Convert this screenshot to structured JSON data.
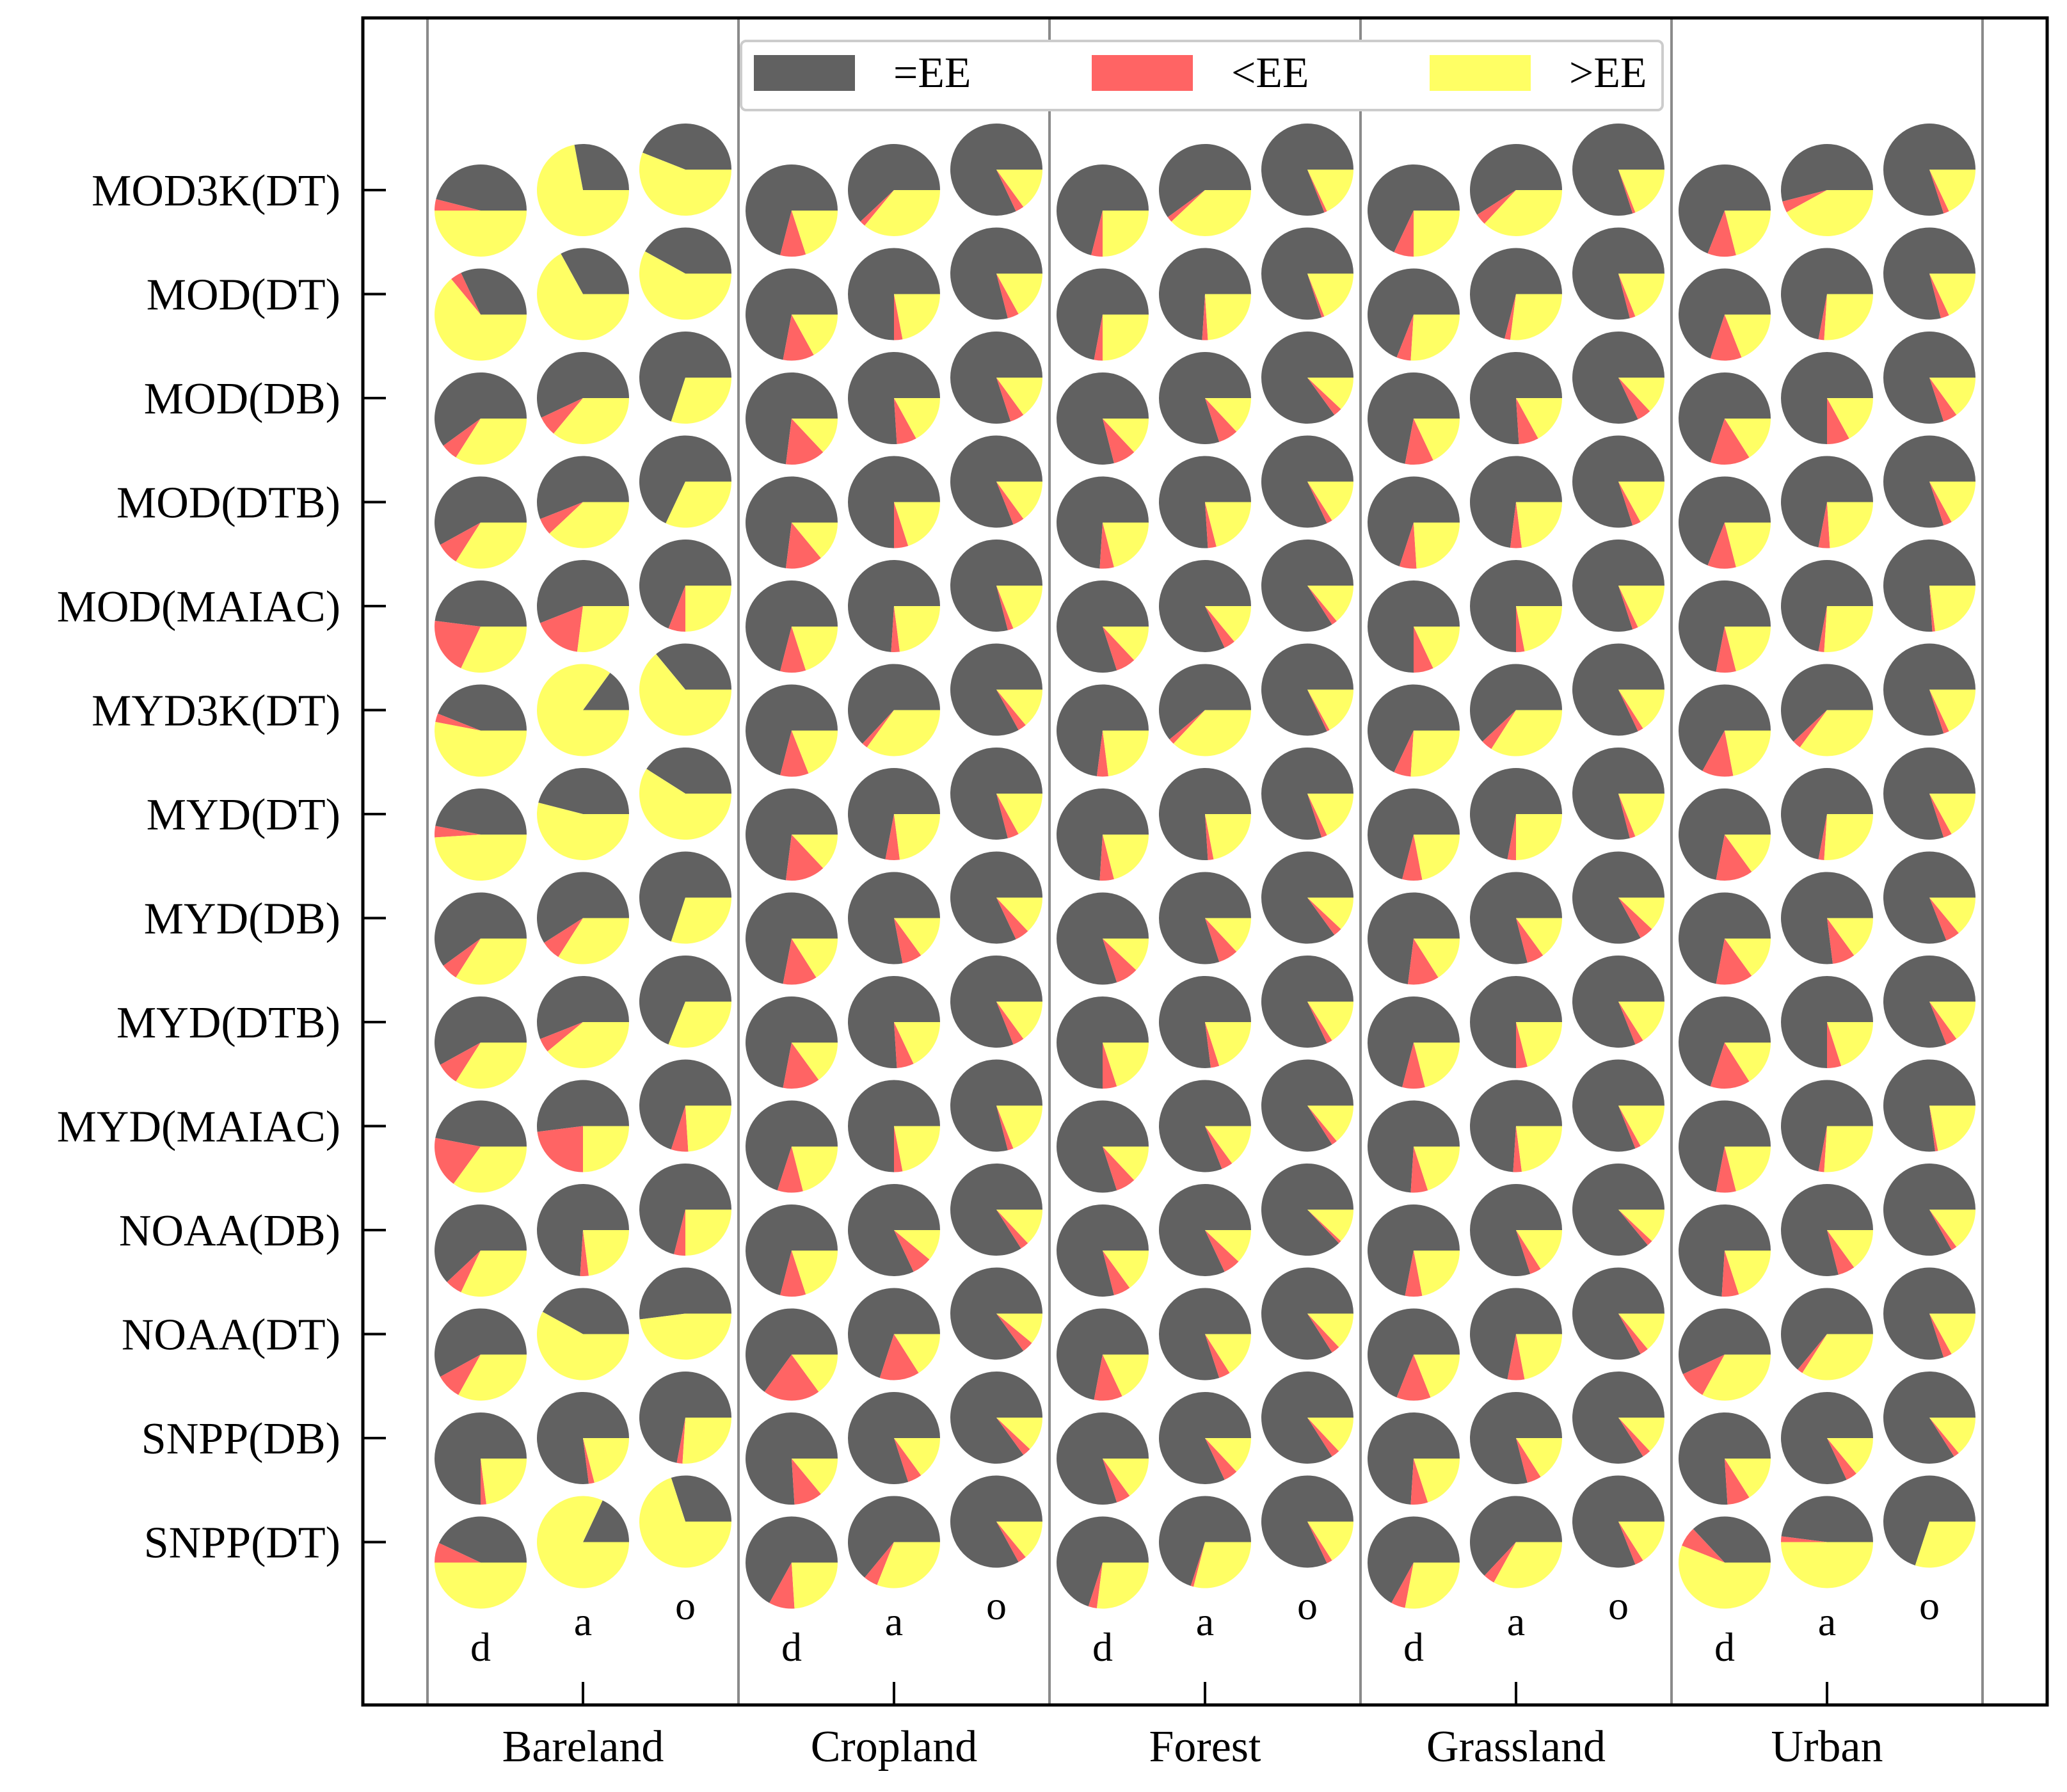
{
  "chart_data": {
    "type": "pie-grid",
    "title": "",
    "colors": {
      "eq": "#616161",
      "lt": "#ff6464",
      "gt": "#ffff64"
    },
    "legend": [
      {
        "key": "eq",
        "label": "=EE"
      },
      {
        "key": "lt",
        "label": "<EE"
      },
      {
        "key": "gt",
        "label": ">EE"
      }
    ],
    "legend_position": "top-center",
    "products": [
      "MOD3K(DT)",
      "MOD(DT)",
      "MOD(DB)",
      "MOD(DTB)",
      "MOD(MAIAC)",
      "MYD3K(DT)",
      "MYD(DT)",
      "MYD(DB)",
      "MYD(DTB)",
      "MYD(MAIAC)",
      "NOAA(DB)",
      "NOAA(DT)",
      "SNPP(DB)",
      "SNPP(DT)"
    ],
    "land_covers": [
      "Bareland",
      "Cropland",
      "Forest",
      "Grassland",
      "Urban"
    ],
    "conditions": [
      "d",
      "a",
      "o"
    ],
    "condition_note": "Each land cover has three pies per product: d, a, o (left to right, vertically staggered). Each pie = [=EE %, <EE %, >EE %].",
    "values": {
      "Bareland": {
        "MOD3K(DT)": [
          [
            46,
            4,
            50
          ],
          [
            28,
            0,
            72
          ],
          [
            44,
            0,
            56
          ]
        ],
        "MOD(DT)": [
          [
            32,
            4,
            64
          ],
          [
            33,
            0,
            67
          ],
          [
            42,
            0,
            58
          ]
        ],
        "MOD(DB)": [
          [
            60,
            6,
            34
          ],
          [
            57,
            7,
            36
          ],
          [
            70,
            0,
            30
          ]
        ],
        "MOD(DTB)": [
          [
            58,
            8,
            34
          ],
          [
            56,
            6,
            38
          ],
          [
            68,
            0,
            32
          ]
        ],
        "MOD(MAIAC)": [
          [
            48,
            20,
            32
          ],
          [
            56,
            17,
            27
          ],
          [
            69,
            6,
            25
          ]
        ],
        "MYD3K(DT)": [
          [
            44,
            3,
            53
          ],
          [
            15,
            0,
            85
          ],
          [
            36,
            0,
            64
          ]
        ],
        "MYD(DT)": [
          [
            47,
            4,
            49
          ],
          [
            46,
            0,
            54
          ],
          [
            41,
            0,
            59
          ]
        ],
        "MYD(DB)": [
          [
            60,
            6,
            34
          ],
          [
            59,
            7,
            34
          ],
          [
            70,
            0,
            30
          ]
        ],
        "MYD(DTB)": [
          [
            58,
            8,
            34
          ],
          [
            56,
            5,
            39
          ],
          [
            69,
            0,
            31
          ]
        ],
        "MYD(MAIAC)": [
          [
            47,
            18,
            35
          ],
          [
            52,
            23,
            25
          ],
          [
            70,
            6,
            24
          ]
        ],
        "NOAA(DB)": [
          [
            62,
            6,
            32
          ],
          [
            74,
            3,
            23
          ],
          [
            71,
            4,
            25
          ]
        ],
        "NOAA(DT)": [
          [
            58,
            9,
            33
          ],
          [
            42,
            0,
            58
          ],
          [
            52,
            0,
            48
          ]
        ],
        "SNPP(DB)": [
          [
            75,
            2,
            23
          ],
          [
            77,
            2,
            21
          ],
          [
            72,
            2,
            26
          ]
        ],
        "SNPP(DT)": [
          [
            43,
            7,
            50
          ],
          [
            18,
            0,
            82
          ],
          [
            30,
            0,
            70
          ]
        ]
      },
      "Cropland": {
        "MOD3K(DT)": [
          [
            71,
            9,
            20
          ],
          [
            62,
            2,
            36
          ],
          [
            82,
            3,
            15
          ]
        ],
        "MOD(DT)": [
          [
            72,
            11,
            17
          ],
          [
            75,
            3,
            22
          ],
          [
            79,
            4,
            17
          ]
        ],
        "MOD(DB)": [
          [
            73,
            14,
            13
          ],
          [
            76,
            7,
            17
          ],
          [
            80,
            5,
            15
          ]
        ],
        "MOD(DTB)": [
          [
            73,
            13,
            14
          ],
          [
            75,
            5,
            20
          ],
          [
            81,
            4,
            15
          ]
        ],
        "MOD(MAIAC)": [
          [
            71,
            9,
            20
          ],
          [
            74,
            3,
            23
          ],
          [
            79,
            2,
            19
          ]
        ],
        "MYD3K(DT)": [
          [
            71,
            10,
            19
          ],
          [
            63,
            2,
            35
          ],
          [
            83,
            3,
            14
          ]
        ],
        "MYD(DT)": [
          [
            73,
            14,
            13
          ],
          [
            72,
            5,
            23
          ],
          [
            79,
            4,
            17
          ]
        ],
        "MYD(DB)": [
          [
            72,
            12,
            16
          ],
          [
            78,
            7,
            15
          ],
          [
            82,
            5,
            13
          ]
        ],
        "MYD(DTB)": [
          [
            72,
            13,
            15
          ],
          [
            76,
            6,
            18
          ],
          [
            81,
            4,
            15
          ]
        ],
        "MYD(MAIAC)": [
          [
            70,
            9,
            21
          ],
          [
            75,
            3,
            22
          ],
          [
            79,
            2,
            19
          ]
        ],
        "NOAA(DB)": [
          [
            71,
            9,
            20
          ],
          [
            82,
            7,
            11
          ],
          [
            84,
            3,
            13
          ]
        ],
        "NOAA(DT)": [
          [
            65,
            20,
            15
          ],
          [
            70,
            14,
            16
          ],
          [
            85,
            4,
            11
          ]
        ],
        "SNPP(DB)": [
          [
            76,
            10,
            14
          ],
          [
            80,
            5,
            15
          ],
          [
            85,
            3,
            12
          ]
        ],
        "SNPP(DT)": [
          [
            67,
            9,
            24
          ],
          [
            64,
            5,
            31
          ],
          [
            83,
            3,
            14
          ]
        ]
      },
      "Forest": {
        "MOD3K(DT)": [
          [
            71,
            4,
            25
          ],
          [
            60,
            2,
            38
          ],
          [
            81,
            1,
            18
          ]
        ],
        "MOD(DT)": [
          [
            72,
            3,
            25
          ],
          [
            74,
            2,
            24
          ],
          [
            80,
            1,
            19
          ]
        ],
        "MOD(DB)": [
          [
            79,
            8,
            13
          ],
          [
            80,
            7,
            13
          ],
          [
            85,
            3,
            12
          ]
        ],
        "MOD(DTB)": [
          [
            74,
            5,
            21
          ],
          [
            76,
            3,
            21
          ],
          [
            82,
            2,
            16
          ]
        ],
        "MOD(MAIAC)": [
          [
            80,
            7,
            13
          ],
          [
            82,
            4,
            14
          ],
          [
            84,
            2,
            14
          ]
        ],
        "MYD3K(DT)": [
          [
            73,
            4,
            23
          ],
          [
            61,
            2,
            37
          ],
          [
            82,
            1,
            17
          ]
        ],
        "MYD(DT)": [
          [
            74,
            5,
            21
          ],
          [
            76,
            2,
            22
          ],
          [
            80,
            2,
            18
          ]
        ],
        "MYD(DB)": [
          [
            80,
            8,
            12
          ],
          [
            80,
            7,
            13
          ],
          [
            85,
            3,
            12
          ]
        ],
        "MYD(DTB)": [
          [
            75,
            5,
            20
          ],
          [
            77,
            3,
            20
          ],
          [
            82,
            2,
            16
          ]
        ],
        "MYD(MAIAC)": [
          [
            80,
            7,
            13
          ],
          [
            81,
            4,
            15
          ],
          [
            84,
            2,
            14
          ]
        ],
        "NOAA(DB)": [
          [
            79,
            6,
            15
          ],
          [
            82,
            6,
            12
          ],
          [
            87,
            1,
            12
          ]
        ],
        "NOAA(DT)": [
          [
            72,
            10,
            18
          ],
          [
            80,
            4,
            16
          ],
          [
            84,
            3,
            13
          ]
        ],
        "SNPP(DB)": [
          [
            80,
            5,
            15
          ],
          [
            82,
            5,
            13
          ],
          [
            84,
            3,
            13
          ]
        ],
        "SNPP(DT)": [
          [
            70,
            3,
            27
          ],
          [
            70,
            1,
            29
          ],
          [
            82,
            2,
            16
          ]
        ]
      },
      "Grassland": {
        "MOD3K(DT)": [
          [
            68,
            7,
            25
          ],
          [
            59,
            4,
            37
          ],
          [
            80,
            1,
            19
          ]
        ],
        "MOD(DT)": [
          [
            69,
            5,
            26
          ],
          [
            71,
            2,
            27
          ],
          [
            79,
            2,
            19
          ]
        ],
        "MOD(DB)": [
          [
            72,
            10,
            18
          ],
          [
            76,
            7,
            17
          ],
          [
            82,
            5,
            13
          ]
        ],
        "MOD(DTB)": [
          [
            70,
            6,
            24
          ],
          [
            73,
            4,
            23
          ],
          [
            80,
            3,
            17
          ]
        ],
        "MOD(MAIAC)": [
          [
            75,
            7,
            18
          ],
          [
            75,
            3,
            22
          ],
          [
            80,
            2,
            18
          ]
        ],
        "MYD3K(DT)": [
          [
            68,
            6,
            26
          ],
          [
            62,
            4,
            34
          ],
          [
            82,
            2,
            16
          ]
        ],
        "MYD(DT)": [
          [
            71,
            7,
            22
          ],
          [
            72,
            3,
            25
          ],
          [
            79,
            2,
            19
          ]
        ],
        "MYD(DB)": [
          [
            73,
            11,
            16
          ],
          [
            79,
            6,
            15
          ],
          [
            83,
            5,
            12
          ]
        ],
        "MYD(DTB)": [
          [
            71,
            8,
            21
          ],
          [
            75,
            4,
            21
          ],
          [
            81,
            3,
            16
          ]
        ],
        "MYD(MAIAC)": [
          [
            74,
            6,
            20
          ],
          [
            74,
            3,
            23
          ],
          [
            81,
            2,
            17
          ]
        ],
        "NOAA(DB)": [
          [
            72,
            6,
            22
          ],
          [
            80,
            4,
            16
          ],
          [
            86,
            2,
            12
          ]
        ],
        "NOAA(DT)": [
          [
            69,
            12,
            19
          ],
          [
            72,
            6,
            22
          ],
          [
            83,
            3,
            14
          ]
        ],
        "SNPP(DB)": [
          [
            74,
            6,
            20
          ],
          [
            79,
            5,
            16
          ],
          [
            84,
            3,
            13
          ]
        ],
        "SNPP(DT)": [
          [
            67,
            5,
            28
          ],
          [
            63,
            4,
            33
          ],
          [
            81,
            3,
            16
          ]
        ]
      },
      "Urban": {
        "MOD3K(DT)": [
          [
            69,
            10,
            21
          ],
          [
            54,
            4,
            42
          ],
          [
            80,
            2,
            18
          ]
        ],
        "MOD(DT)": [
          [
            70,
            11,
            19
          ],
          [
            72,
            2,
            26
          ],
          [
            79,
            3,
            18
          ]
        ],
        "MOD(DB)": [
          [
            70,
            14,
            16
          ],
          [
            75,
            8,
            17
          ],
          [
            80,
            5,
            15
          ]
        ],
        "MOD(DTB)": [
          [
            69,
            10,
            21
          ],
          [
            72,
            4,
            24
          ],
          [
            80,
            3,
            17
          ]
        ],
        "MOD(MAIAC)": [
          [
            72,
            7,
            21
          ],
          [
            72,
            2,
            26
          ],
          [
            76,
            1,
            23
          ]
        ],
        "MYD3K(DT)": [
          [
            67,
            11,
            22
          ],
          [
            62,
            3,
            35
          ],
          [
            80,
            2,
            18
          ]
        ],
        "MYD(DT)": [
          [
            72,
            13,
            15
          ],
          [
            72,
            2,
            26
          ],
          [
            80,
            3,
            17
          ]
        ],
        "MYD(DB)": [
          [
            72,
            13,
            15
          ],
          [
            77,
            8,
            15
          ],
          [
            81,
            5,
            14
          ]
        ],
        "MYD(DTB)": [
          [
            70,
            14,
            16
          ],
          [
            75,
            5,
            20
          ],
          [
            81,
            4,
            15
          ]
        ],
        "MYD(MAIAC)": [
          [
            72,
            7,
            21
          ],
          [
            72,
            2,
            26
          ],
          [
            77,
            1,
            22
          ]
        ],
        "NOAA(DB)": [
          [
            74,
            6,
            20
          ],
          [
            79,
            6,
            15
          ],
          [
            83,
            2,
            15
          ]
        ],
        "NOAA(DT)": [
          [
            57,
            10,
            33
          ],
          [
            64,
            2,
            34
          ],
          [
            80,
            3,
            17
          ]
        ],
        "SNPP(DB)": [
          [
            76,
            8,
            16
          ],
          [
            82,
            4,
            14
          ],
          [
            84,
            2,
            14
          ]
        ],
        "SNPP(DT)": [
          [
            37,
            7,
            56
          ],
          [
            48,
            2,
            50
          ],
          [
            70,
            0,
            30
          ]
        ]
      }
    }
  }
}
